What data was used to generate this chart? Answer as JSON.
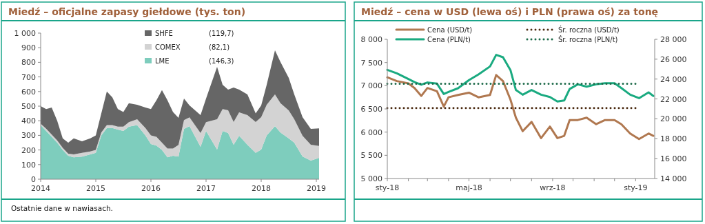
{
  "chart_data": [
    {
      "type": "area",
      "stacked": true,
      "title": "Miedź – oficjalne zapasy giełdowe (tys. ton)",
      "legend": "top",
      "grid": false,
      "x": [
        2014.0,
        2014.1,
        2014.2,
        2014.3,
        2014.4,
        2014.5,
        2014.6,
        2014.75,
        2014.9,
        2015.0,
        2015.1,
        2015.2,
        2015.3,
        2015.4,
        2015.5,
        2015.6,
        2015.75,
        2015.9,
        2016.0,
        2016.1,
        2016.2,
        2016.3,
        2016.4,
        2016.5,
        2016.6,
        2016.7,
        2016.9,
        2017.0,
        2017.2,
        2017.3,
        2017.4,
        2017.5,
        2017.6,
        2017.75,
        2017.9,
        2018.0,
        2018.1,
        2018.25,
        2018.35,
        2018.5,
        2018.6,
        2018.75,
        2018.9,
        2019.05
      ],
      "xlim": [
        2014,
        2019.05
      ],
      "xticks": [
        2014,
        2015,
        2016,
        2017,
        2018,
        2019
      ],
      "ylim": [
        0,
        1000
      ],
      "yticks": [
        0,
        100,
        200,
        300,
        400,
        500,
        600,
        700,
        800,
        900,
        {
          "value": 1000,
          "label": "1 000"
        }
      ],
      "series": [
        {
          "name": "LME",
          "color": "#7ecdbd",
          "values": [
            370,
            330,
            290,
            250,
            200,
            160,
            150,
            155,
            170,
            180,
            300,
            350,
            350,
            340,
            330,
            360,
            370,
            300,
            240,
            230,
            200,
            150,
            160,
            155,
            344,
            363,
            222,
            330,
            203,
            330,
            316,
            236,
            297,
            236,
            180,
            203,
            300,
            363,
            320,
            280,
            250,
            156,
            127,
            146
          ]
        },
        {
          "name": "COMEX",
          "color": "#d3d3d3",
          "values": [
            10,
            15,
            15,
            15,
            15,
            15,
            20,
            25,
            20,
            20,
            20,
            20,
            20,
            20,
            30,
            30,
            40,
            50,
            60,
            60,
            50,
            60,
            50,
            80,
            60,
            60,
            94,
            60,
            207,
            150,
            156,
            155,
            160,
            203,
            211,
            222,
            210,
            217,
            200,
            190,
            160,
            141,
            109,
            82
          ]
        },
        {
          "name": "SHFE",
          "color": "#666666",
          "values": [
            120,
            135,
            185,
            135,
            65,
            75,
            110,
            80,
            90,
            100,
            130,
            230,
            190,
            120,
            100,
            130,
            100,
            140,
            180,
            250,
            360,
            330,
            250,
            185,
            148,
            82,
            123,
            162,
            359,
            166,
            141,
            236,
            156,
            141,
            60,
            80,
            136,
            302,
            282,
            223,
            170,
            128,
            108,
            120
          ]
        }
      ],
      "annotations": [
        "(119,7)",
        "(82,1)",
        "(146,3)",
        "Ostatnie dane w nawiasach."
      ]
    },
    {
      "type": "line",
      "title": "Miedź – cena w USD (lewa oś) i PLN (prawa oś) za tonę",
      "legend": "top",
      "grid": false,
      "x": [
        "2018-01-01",
        "2018-01-15",
        "2018-02-01",
        "2018-02-10",
        "2018-02-20",
        "2018-03-01",
        "2018-03-15",
        "2018-03-25",
        "2018-04-01",
        "2018-04-15",
        "2018-05-01",
        "2018-05-15",
        "2018-06-01",
        "2018-06-10",
        "2018-06-20",
        "2018-07-01",
        "2018-07-09",
        "2018-07-19",
        "2018-08-01",
        "2018-08-15",
        "2018-08-28",
        "2018-09-08",
        "2018-09-18",
        "2018-09-26",
        "2018-10-08",
        "2018-10-21",
        "2018-11-04",
        "2018-11-17",
        "2018-12-01",
        "2018-12-11",
        "2018-12-24",
        "2019-01-06",
        "2019-01-20",
        "2019-01-27"
      ],
      "xlim": [
        "2018-01-01",
        "2019-01-29"
      ],
      "xticks": [
        {
          "value": "2018-01-01",
          "label": "sty-18"
        },
        {
          "value": "2018-02-01",
          "label": null
        },
        {
          "value": "2018-03-01",
          "label": null
        },
        {
          "value": "2018-04-01",
          "label": null
        },
        {
          "value": "2018-05-01",
          "label": "maj-18"
        },
        {
          "value": "2018-06-01",
          "label": null
        },
        {
          "value": "2018-07-01",
          "label": null
        },
        {
          "value": "2018-08-01",
          "label": null
        },
        {
          "value": "2018-09-01",
          "label": "wrz-18"
        },
        {
          "value": "2018-10-01",
          "label": null
        },
        {
          "value": "2018-11-01",
          "label": null
        },
        {
          "value": "2018-12-01",
          "label": null
        },
        {
          "value": "2019-01-01",
          "label": "sty-19"
        }
      ],
      "ylim": [
        5000,
        8000
      ],
      "yticks": [
        {
          "value": 5000,
          "label": "5 000"
        },
        {
          "value": 5500,
          "label": "5 500"
        },
        {
          "value": 6000,
          "label": "6 000"
        },
        {
          "value": 6500,
          "label": "6 500"
        },
        {
          "value": 7000,
          "label": "7 000"
        },
        {
          "value": 7500,
          "label": "7 500"
        },
        {
          "value": 8000,
          "label": "8 000"
        }
      ],
      "y2lim": [
        14000,
        28000
      ],
      "y2ticks": [
        {
          "value": 14000,
          "label": "14 000"
        },
        {
          "value": 16000,
          "label": "16 000"
        },
        {
          "value": 18000,
          "label": "18 000"
        },
        {
          "value": 20000,
          "label": "20 000"
        },
        {
          "value": 22000,
          "label": "22 000"
        },
        {
          "value": 24000,
          "label": "24 000"
        },
        {
          "value": 26000,
          "label": "26 000"
        },
        {
          "value": 28000,
          "label": "28 000"
        }
      ],
      "series": [
        {
          "name": "Cena (USD/t)",
          "color": "#b07850",
          "line_style": "solid",
          "values": [
            7180,
            7100,
            7050,
            6950,
            6780,
            6950,
            6880,
            6550,
            6750,
            6800,
            6850,
            6750,
            6800,
            7230,
            7100,
            6700,
            6310,
            6020,
            6220,
            5870,
            6120,
            5870,
            5920,
            6260,
            6260,
            6310,
            6170,
            6260,
            6260,
            6170,
            5970,
            5850,
            5970,
            5920
          ]
        },
        {
          "name": "Cena (PLN/t)",
          "color": "#1aaa80",
          "axis": "y2",
          "line_style": "solid",
          "values": [
            24930,
            24580,
            24000,
            23700,
            23430,
            23660,
            23540,
            22500,
            22700,
            23080,
            23890,
            24460,
            25270,
            26430,
            26200,
            24900,
            22900,
            22430,
            22900,
            22430,
            22200,
            21740,
            21850,
            23000,
            23470,
            23240,
            23470,
            23580,
            23580,
            23100,
            22430,
            22080,
            22660,
            22300
          ]
        },
        {
          "name": "Śr. roczna (USD/t)",
          "color": "#4a2a10",
          "line_style": "dotted",
          "x": [
            "2018-01-01",
            "2019-01-01"
          ],
          "values": [
            6520,
            6520
          ]
        },
        {
          "name": "Śr. roczna (PLN/t)",
          "color": "#1e6b4a",
          "axis": "y2",
          "line_style": "dotted",
          "x": [
            "2018-01-01",
            "2019-01-01"
          ],
          "values": [
            23530,
            23530
          ]
        }
      ]
    }
  ]
}
